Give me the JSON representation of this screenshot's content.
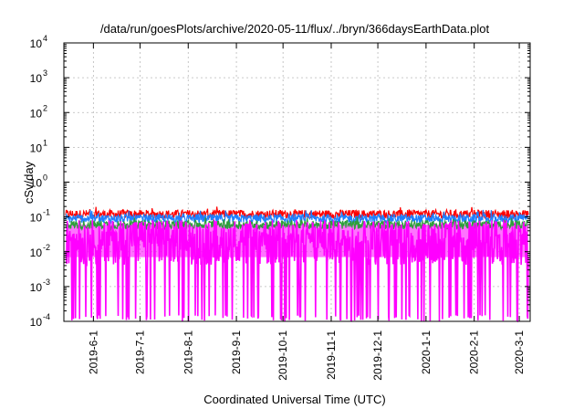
{
  "chart_data": {
    "type": "line",
    "title": "/data/run/goesPlots/archive/2020-05-11/flux/../bryn/366daysEarthData.plot",
    "xlabel": "Coordinated Universal Time (UTC)",
    "ylabel": "cSv/day",
    "y_scale": "log",
    "ylim": [
      0.0001,
      10000
    ],
    "xlim": [
      "2019-05-13",
      "2020-03-08"
    ],
    "grid": true,
    "y_ticks": [
      {
        "value": 0.0001,
        "base": "10",
        "exp": "-4"
      },
      {
        "value": 0.001,
        "base": "10",
        "exp": "-3"
      },
      {
        "value": 0.01,
        "base": "10",
        "exp": "-2"
      },
      {
        "value": 0.1,
        "base": "10",
        "exp": "-1"
      },
      {
        "value": 1,
        "base": "10",
        "exp": "0"
      },
      {
        "value": 10,
        "base": "10",
        "exp": "1"
      },
      {
        "value": 100,
        "base": "10",
        "exp": "2"
      },
      {
        "value": 1000,
        "base": "10",
        "exp": "3"
      },
      {
        "value": 10000,
        "base": "10",
        "exp": "4"
      }
    ],
    "x_ticks": [
      {
        "date": "2019-06-01",
        "label": "2019-6-1"
      },
      {
        "date": "2019-07-01",
        "label": "2019-7-1"
      },
      {
        "date": "2019-08-01",
        "label": "2019-8-1"
      },
      {
        "date": "2019-09-01",
        "label": "2019-9-1"
      },
      {
        "date": "2019-10-01",
        "label": "2019-10-1"
      },
      {
        "date": "2019-11-01",
        "label": "2019-11-1"
      },
      {
        "date": "2019-12-01",
        "label": "2019-12-1"
      },
      {
        "date": "2020-01-01",
        "label": "2020-1-1"
      },
      {
        "date": "2020-02-01",
        "label": "2020-2-1"
      },
      {
        "date": "2020-03-01",
        "label": "2020-3-1"
      }
    ],
    "series": [
      {
        "color": "#ff0000",
        "typical": 0.12,
        "min": 0.09,
        "max": 0.2
      },
      {
        "color": "#1e7fff",
        "typical": 0.09,
        "min": 0.06,
        "max": 0.16
      },
      {
        "color": "#2e9e3c",
        "typical": 0.06,
        "min": 0.04,
        "max": 0.1
      },
      {
        "color": "#ff00ff",
        "typical": 0.03,
        "min": 0.0001,
        "max": 0.08
      }
    ]
  }
}
